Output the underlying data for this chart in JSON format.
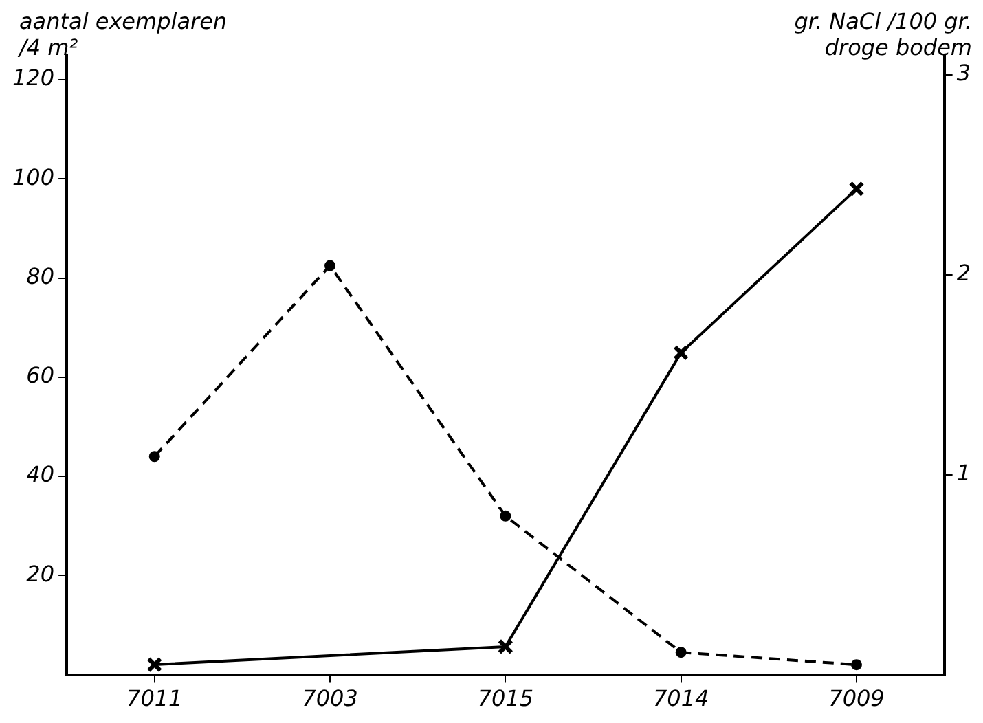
{
  "chart_data": {
    "type": "line",
    "ylabel": "aantal exemplaren\n/4 m²",
    "y2label": "gr. NaCl /100 gr.\ndroge bodem",
    "categories": [
      "7011",
      "7003",
      "7015",
      "7014",
      "7009"
    ],
    "series": [
      {
        "color": "#000000",
        "marker": "circle",
        "line_style": "dashed",
        "values": [
          44,
          82.5,
          32,
          4.5,
          2
        ]
      },
      {
        "color": "#000000",
        "marker": "cross",
        "line_style": "solid",
        "axis": "y2",
        "values": [
          0.05,
          null,
          0.14,
          1.61,
          2.43
        ]
      }
    ],
    "ylim": [
      0,
      125
    ],
    "yticks": [
      20,
      40,
      60,
      80,
      100,
      120
    ],
    "y2lim": [
      0,
      3.1
    ],
    "y2ticks": [
      1,
      2,
      3
    ],
    "grid": false,
    "legend": false
  }
}
